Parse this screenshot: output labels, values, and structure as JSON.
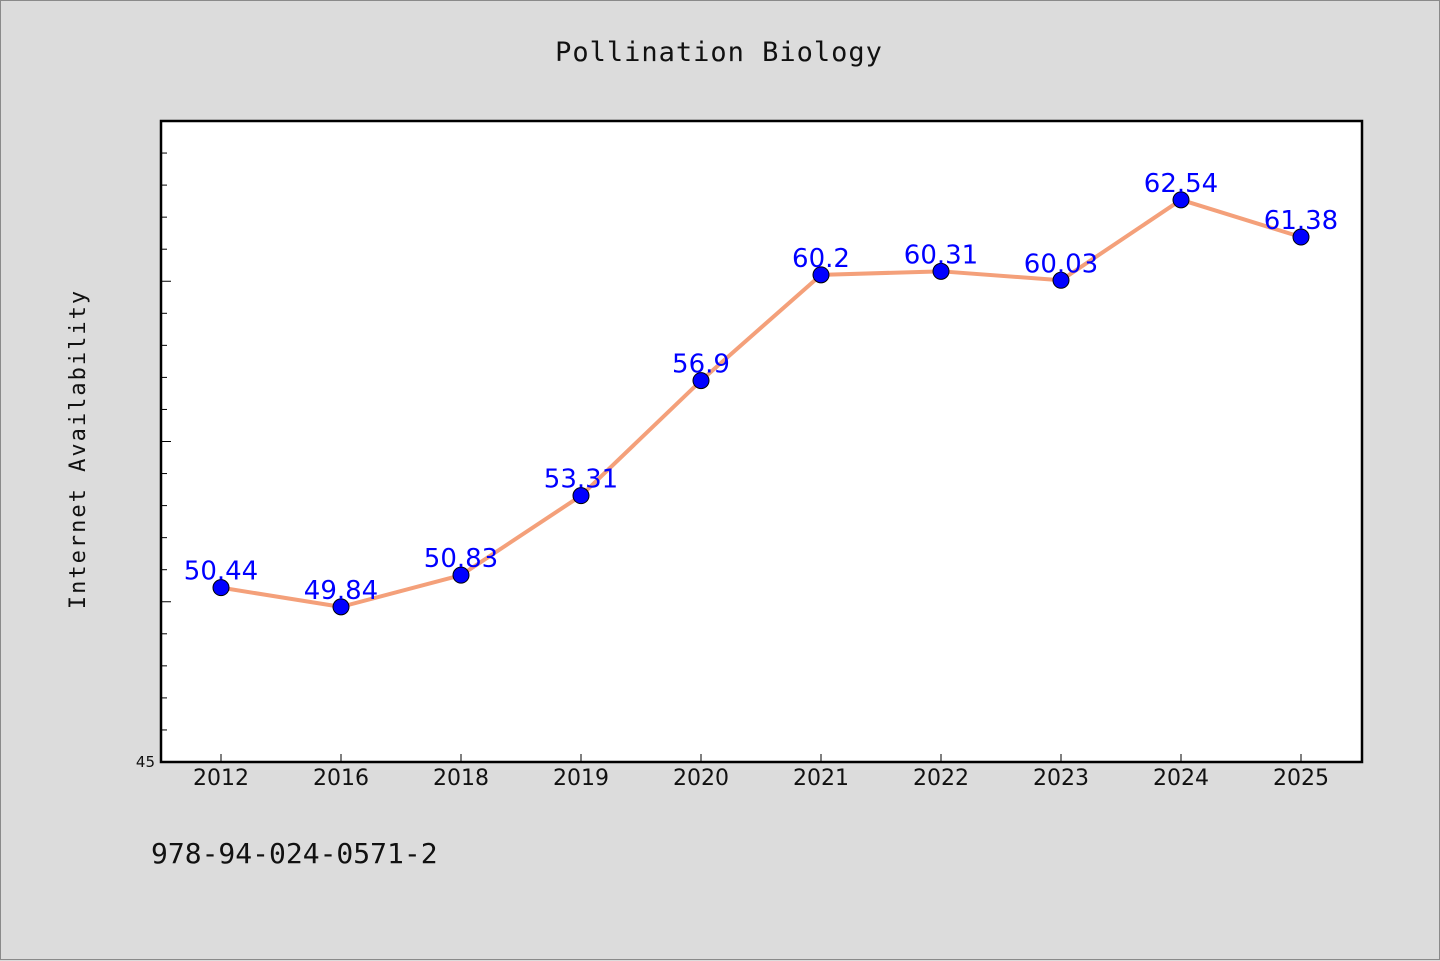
{
  "chart_data": {
    "type": "line",
    "title": "Pollination Biology",
    "xlabel": "",
    "ylabel": "Internet Availability",
    "categories": [
      "2012",
      "2016",
      "2018",
      "2019",
      "2020",
      "2021",
      "2022",
      "2023",
      "2024",
      "2025"
    ],
    "series": [
      {
        "values": [
          50.44,
          49.84,
          50.83,
          53.31,
          56.9,
          60.2,
          60.31,
          60.03,
          62.54,
          61.38
        ],
        "data_labels": [
          "50.44",
          "49.84",
          "50.83",
          "53.31",
          "56.9",
          "60.2",
          "60.31",
          "60.03",
          "62.54",
          "61.38"
        ]
      }
    ],
    "y_tick_labels": [
      "45"
    ],
    "ylim": [
      45,
      65
    ],
    "grid": false,
    "legend": "none",
    "colors": {
      "line": "#f4a07a",
      "marker": "#0000ff",
      "data_label": "#0000ff",
      "plot_bg": "#ffffff",
      "page_bg": "#dcdcdc"
    }
  },
  "footer": {
    "isbn": "978-94-024-0571-2"
  }
}
